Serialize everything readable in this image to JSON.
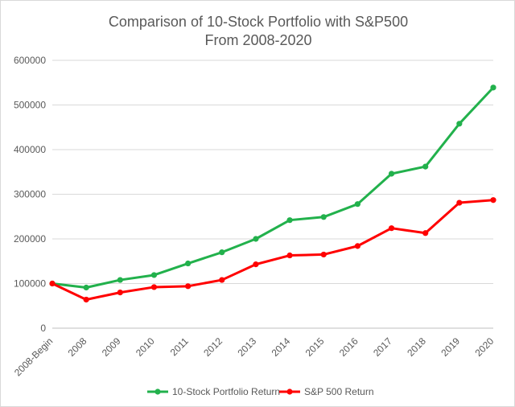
{
  "chart_data": {
    "type": "line",
    "title": [
      "Comparison of 10-Stock Portfolio with S&P500",
      "From 2008-2020"
    ],
    "xlabel": "",
    "ylabel": "",
    "ylim": [
      0,
      600000
    ],
    "yticks": [
      "0",
      "100000",
      "200000",
      "300000",
      "400000",
      "500000",
      "600000"
    ],
    "categories": [
      "2008-Begin",
      "2008",
      "2009",
      "2010",
      "2011",
      "2012",
      "2013",
      "2014",
      "2015",
      "2016",
      "2017",
      "2018",
      "2019",
      "2020"
    ],
    "grid": true,
    "legend_position": "bottom",
    "series": [
      {
        "name": "10-Stock Portfolio Return",
        "color": "#22b14c",
        "values": [
          100000,
          91000,
          108000,
          119000,
          145000,
          170000,
          200000,
          242000,
          249000,
          278000,
          346000,
          362000,
          458000,
          539000
        ]
      },
      {
        "name": "S&P 500 Return",
        "color": "#ff0000",
        "values": [
          100000,
          64000,
          80000,
          92000,
          94000,
          108000,
          143000,
          163000,
          165000,
          184000,
          224000,
          213000,
          281000,
          287000
        ]
      }
    ]
  }
}
